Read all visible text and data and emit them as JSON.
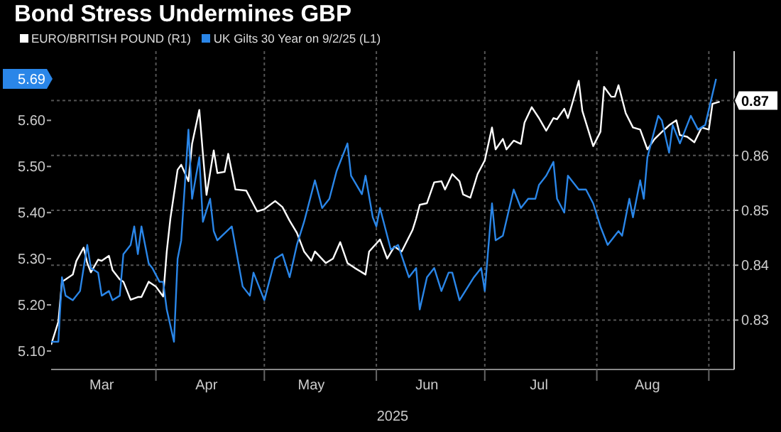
{
  "chart_data": {
    "type": "line",
    "title": "Bond Stress Undermines GBP",
    "xlabel": "2025",
    "legend": "top left",
    "grid": true,
    "xlim": [
      "2025-03-03",
      "2025-09-08"
    ],
    "xticks": [
      {
        "value": "2025-03-17",
        "label": "Mar"
      },
      {
        "value": "2025-04-01",
        "label": null
      },
      {
        "value": "2025-04-15",
        "label": "Apr"
      },
      {
        "value": "2025-05-01",
        "label": null
      },
      {
        "value": "2025-05-14",
        "label": "May"
      },
      {
        "value": "2025-06-01",
        "label": null
      },
      {
        "value": "2025-06-15",
        "label": "Jun"
      },
      {
        "value": "2025-07-01",
        "label": null
      },
      {
        "value": "2025-07-16",
        "label": "Jul"
      },
      {
        "value": "2025-08-01",
        "label": null
      },
      {
        "value": "2025-08-15",
        "label": "Aug"
      },
      {
        "value": "2025-09-01",
        "label": null
      }
    ],
    "ylim": [
      5.06,
      5.75
    ],
    "yticks": [
      {
        "value": 5.1,
        "label": "5.10"
      },
      {
        "value": 5.2,
        "label": "5.20"
      },
      {
        "value": 5.3,
        "label": "5.30"
      },
      {
        "value": 5.4,
        "label": "5.40"
      },
      {
        "value": 5.5,
        "label": "5.50"
      },
      {
        "value": 5.6,
        "label": "5.60"
      },
      {
        "value": 5.69,
        "label": "5.69"
      }
    ],
    "y2lim": [
      0.821,
      0.879
    ],
    "y2ticks": [
      0.83,
      0.84,
      0.85,
      0.86,
      0.87
    ],
    "series": [
      {
        "name": "EURO/BRITISH POUND (R1)",
        "color": "#ffffff",
        "axis": "y2",
        "x": [
          "2025-03-03",
          "2025-03-05",
          "2025-03-06",
          "2025-03-07",
          "2025-03-09",
          "2025-03-10",
          "2025-03-12",
          "2025-03-13",
          "2025-03-14",
          "2025-03-16",
          "2025-03-17",
          "2025-03-19",
          "2025-03-20",
          "2025-03-22",
          "2025-03-23",
          "2025-03-25",
          "2025-03-27",
          "2025-03-28",
          "2025-03-30",
          "2025-04-01",
          "2025-04-03",
          "2025-04-04",
          "2025-04-05",
          "2025-04-07",
          "2025-04-08",
          "2025-04-10",
          "2025-04-11",
          "2025-04-13",
          "2025-04-14",
          "2025-04-15",
          "2025-04-17",
          "2025-04-18",
          "2025-04-20",
          "2025-04-21",
          "2025-04-23",
          "2025-04-26",
          "2025-04-29",
          "2025-05-01",
          "2025-05-04",
          "2025-05-06",
          "2025-05-08",
          "2025-05-10",
          "2025-05-12",
          "2025-05-14",
          "2025-05-15",
          "2025-05-18",
          "2025-05-20",
          "2025-05-22",
          "2025-05-24",
          "2025-05-26",
          "2025-05-29",
          "2025-05-30",
          "2025-06-02",
          "2025-06-04",
          "2025-06-06",
          "2025-06-08",
          "2025-06-11",
          "2025-06-12",
          "2025-06-13",
          "2025-06-15",
          "2025-06-17",
          "2025-06-19",
          "2025-06-20",
          "2025-06-22",
          "2025-06-24",
          "2025-06-25",
          "2025-06-27",
          "2025-06-29",
          "2025-07-01",
          "2025-07-03",
          "2025-07-04",
          "2025-07-06",
          "2025-07-07",
          "2025-07-09",
          "2025-07-11",
          "2025-07-12",
          "2025-07-14",
          "2025-07-16",
          "2025-07-18",
          "2025-07-20",
          "2025-07-21",
          "2025-07-23",
          "2025-07-24",
          "2025-07-25",
          "2025-07-27",
          "2025-07-28",
          "2025-07-31",
          "2025-08-02",
          "2025-08-03",
          "2025-08-05",
          "2025-08-06",
          "2025-08-07",
          "2025-08-09",
          "2025-08-11",
          "2025-08-13",
          "2025-08-15",
          "2025-08-17",
          "2025-08-19",
          "2025-08-21",
          "2025-08-23",
          "2025-08-24",
          "2025-08-26",
          "2025-08-28",
          "2025-08-30",
          "2025-09-01",
          "2025-09-02",
          "2025-09-04"
        ],
        "values": [
          0.8255,
          0.8297,
          0.837,
          0.8374,
          0.8383,
          0.8408,
          0.8432,
          0.8404,
          0.8387,
          0.841,
          0.8408,
          0.8417,
          0.8391,
          0.8374,
          0.837,
          0.8337,
          0.8342,
          0.8342,
          0.837,
          0.8361,
          0.8343,
          0.8425,
          0.8485,
          0.8574,
          0.8583,
          0.8553,
          0.8621,
          0.8683,
          0.8603,
          0.8528,
          0.8609,
          0.8568,
          0.857,
          0.8603,
          0.8538,
          0.8536,
          0.8498,
          0.8502,
          0.8517,
          0.8506,
          0.8481,
          0.8459,
          0.8425,
          0.8408,
          0.8425,
          0.8404,
          0.8412,
          0.8442,
          0.8404,
          0.8395,
          0.8383,
          0.8425,
          0.8447,
          0.8412,
          0.8434,
          0.8425,
          0.8464,
          0.8485,
          0.851,
          0.8513,
          0.8551,
          0.8553,
          0.8538,
          0.8566,
          0.8553,
          0.8529,
          0.8523,
          0.8566,
          0.8591,
          0.8651,
          0.8611,
          0.863,
          0.8611,
          0.8627,
          0.8621,
          0.866,
          0.8688,
          0.8668,
          0.8645,
          0.8668,
          0.8666,
          0.8685,
          0.8668,
          0.869,
          0.8736,
          0.8681,
          0.8617,
          0.8643,
          0.8725,
          0.8707,
          0.8707,
          0.8728,
          0.8677,
          0.8651,
          0.8647,
          0.8611,
          0.863,
          0.8643,
          0.8655,
          0.8664,
          0.8637,
          0.8634,
          0.8624,
          0.8651,
          0.8647,
          0.8694,
          0.8698
        ]
      },
      {
        "name": "UK Gilts 30 Year on 9/2/25 (L1)",
        "color": "#2a86e8",
        "axis": "y",
        "x": [
          "2025-03-03",
          "2025-03-05",
          "2025-03-06",
          "2025-03-07",
          "2025-03-09",
          "2025-03-11",
          "2025-03-13",
          "2025-03-14",
          "2025-03-16",
          "2025-03-17",
          "2025-03-19",
          "2025-03-20",
          "2025-03-22",
          "2025-03-23",
          "2025-03-25",
          "2025-03-26",
          "2025-03-27",
          "2025-03-28",
          "2025-03-30",
          "2025-03-31",
          "2025-04-02",
          "2025-04-03",
          "2025-04-04",
          "2025-04-06",
          "2025-04-07",
          "2025-04-08",
          "2025-04-10",
          "2025-04-11",
          "2025-04-13",
          "2025-04-14",
          "2025-04-16",
          "2025-04-17",
          "2025-04-18",
          "2025-04-22",
          "2025-04-25",
          "2025-04-27",
          "2025-04-28",
          "2025-05-01",
          "2025-05-04",
          "2025-05-06",
          "2025-05-08",
          "2025-05-10",
          "2025-05-12",
          "2025-05-15",
          "2025-05-17",
          "2025-05-19",
          "2025-05-21",
          "2025-05-24",
          "2025-05-25",
          "2025-05-28",
          "2025-05-29",
          "2025-05-31",
          "2025-06-01",
          "2025-06-02",
          "2025-06-05",
          "2025-06-07",
          "2025-06-10",
          "2025-06-12",
          "2025-06-13",
          "2025-06-15",
          "2025-06-17",
          "2025-06-19",
          "2025-06-21",
          "2025-06-22",
          "2025-06-24",
          "2025-06-28",
          "2025-06-30",
          "2025-07-01",
          "2025-07-03",
          "2025-07-04",
          "2025-07-06",
          "2025-07-09",
          "2025-07-11",
          "2025-07-13",
          "2025-07-15",
          "2025-07-16",
          "2025-07-18",
          "2025-07-20",
          "2025-07-21",
          "2025-07-23",
          "2025-07-24",
          "2025-07-27",
          "2025-07-29",
          "2025-07-31",
          "2025-08-02",
          "2025-08-04",
          "2025-08-07",
          "2025-08-08",
          "2025-08-10",
          "2025-08-11",
          "2025-08-13",
          "2025-08-14",
          "2025-08-15",
          "2025-08-18",
          "2025-08-19",
          "2025-08-21",
          "2025-08-22",
          "2025-08-24",
          "2025-08-27",
          "2025-08-29",
          "2025-08-31",
          "2025-09-03"
        ],
        "values": [
          5.12,
          5.12,
          5.26,
          5.22,
          5.21,
          5.23,
          5.33,
          5.28,
          5.27,
          5.22,
          5.23,
          5.21,
          5.22,
          5.31,
          5.33,
          5.37,
          5.31,
          5.37,
          5.29,
          5.28,
          5.25,
          5.25,
          5.19,
          5.12,
          5.3,
          5.34,
          5.58,
          5.43,
          5.52,
          5.38,
          5.43,
          5.36,
          5.34,
          5.37,
          5.24,
          5.22,
          5.27,
          5.21,
          5.3,
          5.31,
          5.26,
          5.33,
          5.38,
          5.47,
          5.41,
          5.43,
          5.49,
          5.55,
          5.48,
          5.44,
          5.48,
          5.39,
          5.37,
          5.41,
          5.32,
          5.33,
          5.26,
          5.28,
          5.19,
          5.26,
          5.28,
          5.23,
          5.27,
          5.27,
          5.21,
          5.26,
          5.28,
          5.23,
          5.42,
          5.34,
          5.35,
          5.45,
          5.41,
          5.43,
          5.43,
          5.46,
          5.48,
          5.51,
          5.43,
          5.4,
          5.48,
          5.45,
          5.45,
          5.42,
          5.37,
          5.33,
          5.36,
          5.35,
          5.43,
          5.39,
          5.47,
          5.43,
          5.52,
          5.61,
          5.6,
          5.53,
          5.59,
          5.55,
          5.61,
          5.58,
          5.59,
          5.69
        ]
      }
    ]
  }
}
